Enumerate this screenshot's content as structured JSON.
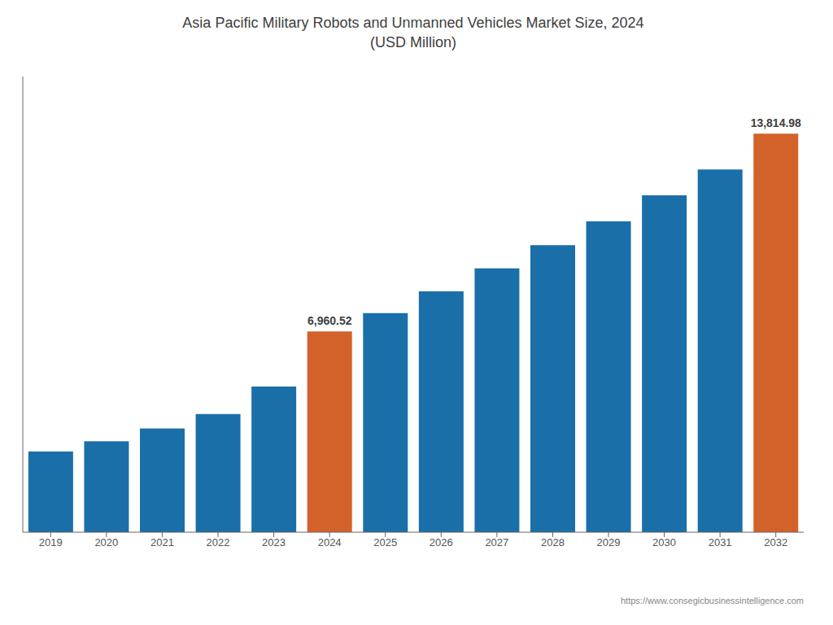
{
  "chart_data": {
    "type": "bar",
    "title": "Asia Pacific Military Robots and Unmanned Vehicles Market Size, 2024",
    "subtitle": "(USD Million)",
    "categories": [
      "2019",
      "2020",
      "2021",
      "2022",
      "2023",
      "2024",
      "2025",
      "2026",
      "2027",
      "2028",
      "2029",
      "2030",
      "2031",
      "2032"
    ],
    "values": [
      2800,
      3150,
      3600,
      4100,
      5050,
      6960.52,
      7600,
      8350,
      9150,
      9950,
      10780,
      11680,
      12580,
      13814.98
    ],
    "colors": [
      "#1a6fa8",
      "#1a6fa8",
      "#1a6fa8",
      "#1a6fa8",
      "#1a6fa8",
      "#d2622a",
      "#1a6fa8",
      "#1a6fa8",
      "#1a6fa8",
      "#1a6fa8",
      "#1a6fa8",
      "#1a6fa8",
      "#1a6fa8",
      "#d2622a"
    ],
    "data_labels": true,
    "value_labels": [
      null,
      null,
      null,
      null,
      null,
      "6,960.52",
      null,
      null,
      null,
      null,
      null,
      null,
      null,
      "13,814.98"
    ],
    "ylim": [
      0,
      15800
    ],
    "grid": false,
    "tick_labels": "x",
    "annotations": [
      "https://www.consegicbusinessintelligence.com"
    ]
  }
}
